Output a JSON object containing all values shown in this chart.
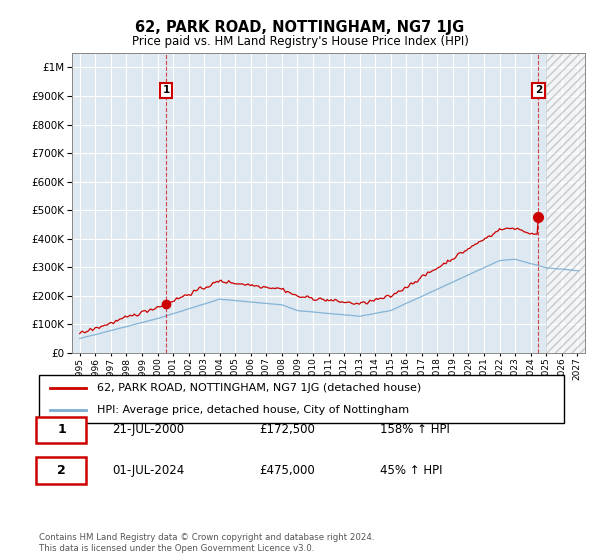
{
  "title": "62, PARK ROAD, NOTTINGHAM, NG7 1JG",
  "subtitle": "Price paid vs. HM Land Registry's House Price Index (HPI)",
  "legend_line1": "62, PARK ROAD, NOTTINGHAM, NG7 1JG (detached house)",
  "legend_line2": "HPI: Average price, detached house, City of Nottingham",
  "sale1_date_label": "21-JUL-2000",
  "sale1_price_label": "£172,500",
  "sale1_hpi_label": "158% ↑ HPI",
  "sale2_date_label": "01-JUL-2024",
  "sale2_price_label": "£475,000",
  "sale2_hpi_label": "45% ↑ HPI",
  "footer": "Contains HM Land Registry data © Crown copyright and database right 2024.\nThis data is licensed under the Open Government Licence v3.0.",
  "red_color": "#cc0000",
  "blue_color": "#7aaed4",
  "grid_color": "#cccccc",
  "bg_color": "#dde8f0",
  "hatch_color": "#bbbbbb",
  "sale1_year": 2000.55,
  "sale1_value": 172500,
  "sale2_year": 2024.5,
  "sale2_value": 475000,
  "xmin": 1994.5,
  "xmax": 2027.5,
  "ymin": 0,
  "ymax": 1050000,
  "hatch_start": 2025.0
}
